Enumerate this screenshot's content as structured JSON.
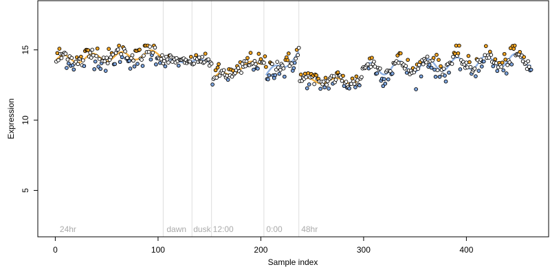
{
  "chart_data": {
    "type": "scatter",
    "title": "",
    "xlabel": "Sample index",
    "ylabel": "Expression",
    "xlim": [
      -17,
      480
    ],
    "ylim": [
      1.7,
      18.5
    ],
    "x_ticks": [
      0,
      100,
      200,
      300,
      400
    ],
    "y_ticks": [
      5,
      10,
      15
    ],
    "grid": false,
    "legend": "none",
    "vlines": [
      105,
      133,
      152,
      203,
      237
    ],
    "vline_color": "#dddddd",
    "section_labels": [
      {
        "x": 3,
        "text": "24hr"
      },
      {
        "x": 107,
        "text": "dawn"
      },
      {
        "x": 133,
        "text": "dusk"
      },
      {
        "x": 152,
        "text": "12:00"
      },
      {
        "x": 204,
        "text": "0:00"
      },
      {
        "x": 238,
        "text": "48hr"
      }
    ],
    "colors": {
      "point_stroke": "#000000",
      "point_fill": "#ffffff",
      "fit_orange": "#f5a623",
      "fit_blue": "#7ea6e0",
      "label_gray": "#aaaaaa"
    },
    "segments": [
      {
        "start": 1,
        "end": 104,
        "base": 14.3,
        "slope": 0.004,
        "amp": 0.3,
        "noise": 0.42
      },
      {
        "start": 105,
        "end": 152,
        "base": 14.2,
        "slope": 0.0,
        "amp": 0.1,
        "noise": 0.2
      },
      {
        "start": 153,
        "end": 204,
        "base": 12.9,
        "slope": 0.028,
        "amp": 0.25,
        "noise": 0.32
      },
      {
        "start": 205,
        "end": 237,
        "base": 13.2,
        "slope": 0.045,
        "amp": 0.3,
        "noise": 0.45
      },
      {
        "start": 238,
        "end": 298,
        "base": 12.8,
        "slope": 0.0,
        "amp": 0.2,
        "noise": 0.32
      },
      {
        "start": 299,
        "end": 463,
        "base": 13.6,
        "slope": 0.0045,
        "amp": 0.45,
        "noise": 0.38
      }
    ]
  }
}
